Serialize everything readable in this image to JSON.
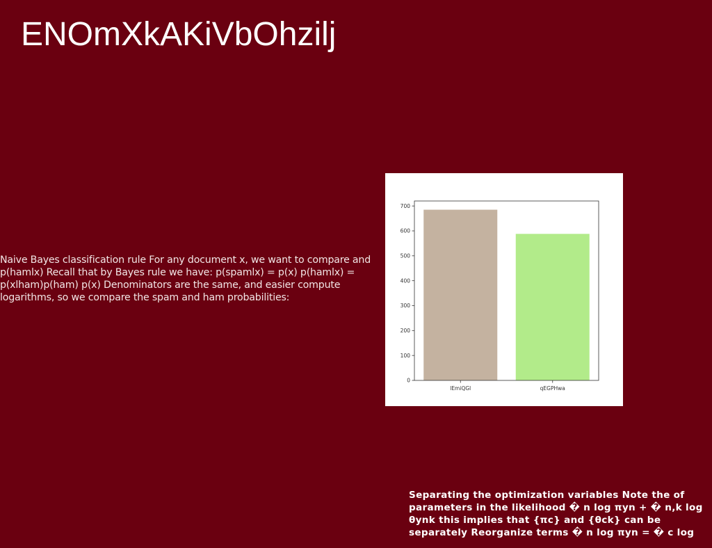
{
  "title": "ENOmXkAKiVbOhzilj",
  "body_text": "Naive Bayes classification rule For any document x, we want to compare and p(hamlx) Recall that by Bayes rule we have: p(spamlx) = p(x) p(hamlx) = p(xlham)p(ham) p(x) Denominators are the same, and easier compute logarithms, so we compare the spam and ham probabilities:",
  "note_text": "Separating the optimization variables Note the of parameters in the likelihood � n log πyn + � n,k log θynk this implies that {πc} and {θck} can be separately Reorganize terms � n log πyn = � c log",
  "chart_data": {
    "type": "bar",
    "title": "",
    "xlabel": "",
    "ylabel": "",
    "categories": [
      "lEmiQGl",
      "qEGPHwa"
    ],
    "values": [
      685,
      588
    ],
    "colors": [
      "#c4b2a0",
      "#b2eb8a"
    ],
    "ylim": [
      0,
      720
    ],
    "yticks": [
      0,
      100,
      200,
      300,
      400,
      500,
      600,
      700
    ],
    "grid": false
  }
}
